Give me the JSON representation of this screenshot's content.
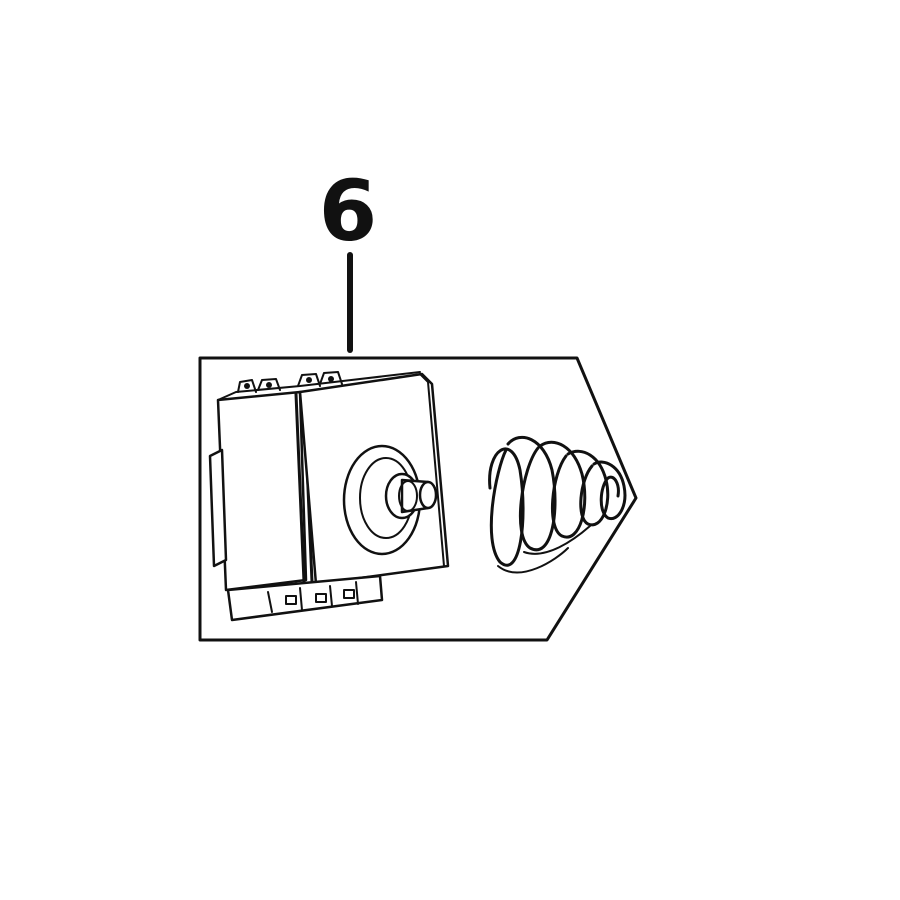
{
  "diagram": {
    "callout_number": "6",
    "colors": {
      "line": "#111111",
      "background": "#ffffff"
    },
    "icons": [
      "switch-icon",
      "spring-icon"
    ]
  }
}
